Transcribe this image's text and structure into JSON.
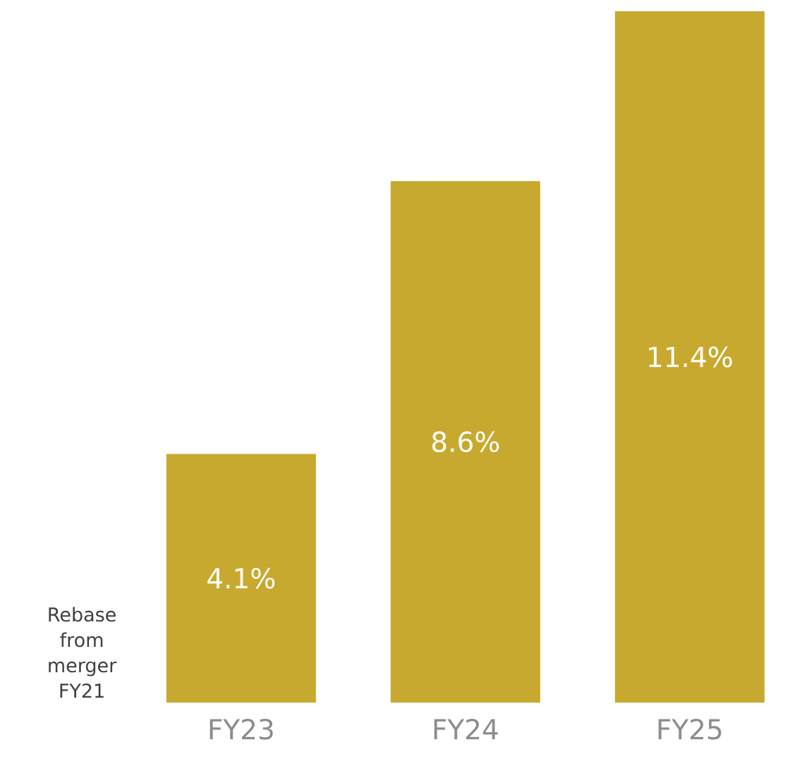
{
  "chart_data": {
    "type": "bar",
    "categories": [
      "FY23",
      "FY24",
      "FY25"
    ],
    "values": [
      4.1,
      8.6,
      11.4
    ],
    "value_labels": [
      "4.1%",
      "8.6%",
      "11.4%"
    ],
    "color": "#c8a92f",
    "annotations": [
      "Rebase from merger FY21"
    ]
  }
}
